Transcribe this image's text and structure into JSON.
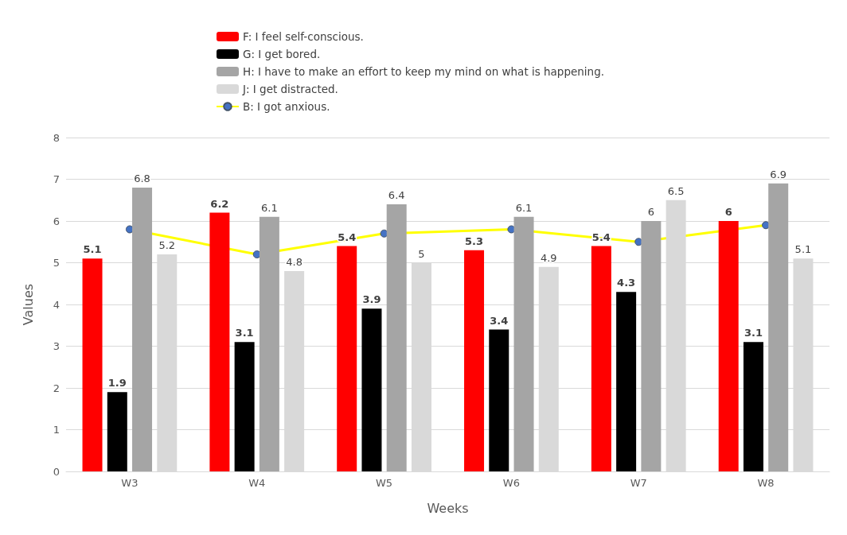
{
  "chart_data": {
    "type": "bar",
    "xlabel": "Weeks",
    "ylabel": "Values",
    "categories": [
      "W3",
      "W4",
      "W5",
      "W6",
      "W7",
      "W8"
    ],
    "ylim": [
      0,
      8
    ],
    "yticks": [
      0,
      1,
      2,
      3,
      4,
      5,
      6,
      7,
      8
    ],
    "grid": "y",
    "legend": "top",
    "series": [
      {
        "name": "F: I feel self-conscious.",
        "color": "#ff0000",
        "values": [
          5.1,
          6.2,
          5.4,
          5.3,
          5.4,
          6
        ],
        "value_labels": [
          "5.1",
          "6.2",
          "5.4",
          "5.3",
          "5.4",
          "6"
        ]
      },
      {
        "name": "G: I get bored.",
        "color": "#000000",
        "values": [
          1.9,
          3.1,
          3.9,
          3.4,
          4.3,
          3.1
        ],
        "value_labels": [
          "1.9",
          "3.1",
          "3.9",
          "3.4",
          "4.3",
          "3.1"
        ]
      },
      {
        "name": "H: I have to make an effort to keep my mind on what is happening.",
        "color": "#a5a5a5",
        "values": [
          6.8,
          6.1,
          6.4,
          6.1,
          6,
          6.9
        ],
        "value_labels": [
          "6.8",
          "6.1",
          "6.4",
          "6.1",
          "6",
          "6.9"
        ]
      },
      {
        "name": "J: I get distracted.",
        "color": "#d9d9d9",
        "values": [
          5.2,
          4.8,
          5,
          4.9,
          6.5,
          5.1
        ],
        "value_labels": [
          "5.2",
          "4.8",
          "5",
          "4.9",
          "6.5",
          "5.1"
        ]
      },
      {
        "name": "B: I got anxious.",
        "type": "line",
        "color": "#ffff00",
        "marker": "circle",
        "values": [
          5.8,
          5.2,
          5.7,
          5.8,
          5.5,
          5.9
        ]
      }
    ]
  }
}
